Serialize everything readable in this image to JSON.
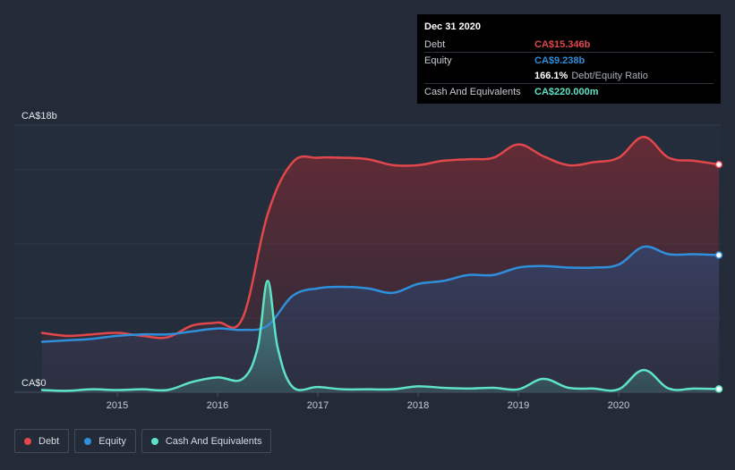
{
  "chart_data": {
    "type": "area",
    "title": "",
    "xlabel": "",
    "ylabel": "",
    "ylim": [
      0,
      18
    ],
    "xlim": [
      2014.25,
      2021.0
    ],
    "y_axis_labels": {
      "top": "CA$18b",
      "bottom": "CA$0"
    },
    "x_ticks": [
      {
        "value": 2015,
        "label": "2015"
      },
      {
        "value": 2016,
        "label": "2016"
      },
      {
        "value": 2017,
        "label": "2017"
      },
      {
        "value": 2018,
        "label": "2018"
      },
      {
        "value": 2019,
        "label": "2019"
      },
      {
        "value": 2020,
        "label": "2020"
      }
    ],
    "series": [
      {
        "name": "Debt",
        "color": "#e2474b",
        "unit": "CA$b",
        "x": [
          2014.25,
          2014.5,
          2014.75,
          2015.0,
          2015.25,
          2015.5,
          2015.75,
          2016.0,
          2016.25,
          2016.5,
          2016.75,
          2017.0,
          2017.25,
          2017.5,
          2017.75,
          2018.0,
          2018.25,
          2018.5,
          2018.75,
          2019.0,
          2019.25,
          2019.5,
          2019.75,
          2020.0,
          2020.25,
          2020.5,
          2020.75,
          2021.0
        ],
        "values": [
          4.0,
          3.8,
          3.9,
          4.0,
          3.8,
          3.7,
          4.5,
          4.7,
          5.0,
          12.0,
          15.5,
          15.8,
          15.8,
          15.7,
          15.3,
          15.3,
          15.6,
          15.7,
          15.8,
          16.7,
          15.9,
          15.3,
          15.5,
          15.8,
          17.2,
          15.8,
          15.6,
          15.346
        ]
      },
      {
        "name": "Equity",
        "color": "#2f8fdb",
        "unit": "CA$b",
        "x": [
          2014.25,
          2014.5,
          2014.75,
          2015.0,
          2015.25,
          2015.5,
          2015.75,
          2016.0,
          2016.25,
          2016.5,
          2016.75,
          2017.0,
          2017.25,
          2017.5,
          2017.75,
          2018.0,
          2018.25,
          2018.5,
          2018.75,
          2019.0,
          2019.25,
          2019.5,
          2019.75,
          2020.0,
          2020.25,
          2020.5,
          2020.75,
          2021.0
        ],
        "values": [
          3.4,
          3.5,
          3.6,
          3.8,
          3.9,
          3.9,
          4.1,
          4.3,
          4.2,
          4.5,
          6.5,
          7.0,
          7.1,
          7.0,
          6.7,
          7.3,
          7.5,
          7.9,
          7.9,
          8.4,
          8.5,
          8.4,
          8.4,
          8.6,
          9.8,
          9.3,
          9.3,
          9.238
        ]
      },
      {
        "name": "Cash And Equivalents",
        "color": "#5fe3c8",
        "unit": "CA$b",
        "x": [
          2014.25,
          2014.5,
          2014.75,
          2015.0,
          2015.25,
          2015.5,
          2015.75,
          2016.0,
          2016.25,
          2016.4,
          2016.5,
          2016.6,
          2016.75,
          2017.0,
          2017.25,
          2017.5,
          2017.75,
          2018.0,
          2018.25,
          2018.5,
          2018.75,
          2019.0,
          2019.25,
          2019.5,
          2019.75,
          2020.0,
          2020.25,
          2020.5,
          2020.75,
          2021.0
        ],
        "values": [
          0.15,
          0.1,
          0.2,
          0.15,
          0.2,
          0.15,
          0.7,
          1.0,
          0.9,
          3.0,
          7.5,
          3.0,
          0.35,
          0.35,
          0.2,
          0.2,
          0.2,
          0.4,
          0.3,
          0.25,
          0.3,
          0.2,
          0.9,
          0.3,
          0.25,
          0.2,
          1.5,
          0.25,
          0.25,
          0.22
        ]
      }
    ]
  },
  "tooltip": {
    "date": "Dec 31 2020",
    "rows": [
      {
        "label": "Debt",
        "value": "CA$15.346b",
        "color": "#e2474b"
      },
      {
        "label": "Equity",
        "value": "CA$9.238b",
        "color": "#2f8fdb"
      }
    ],
    "ratio": {
      "value": "166.1%",
      "label": "Debt/Equity Ratio"
    },
    "cash": {
      "label": "Cash And Equivalents",
      "value": "CA$220.000m",
      "color": "#5fe3c8"
    }
  },
  "legend": [
    {
      "label": "Debt",
      "color": "#e2474b"
    },
    {
      "label": "Equity",
      "color": "#2f8fdb"
    },
    {
      "label": "Cash And Equivalents",
      "color": "#5fe3c8"
    }
  ]
}
